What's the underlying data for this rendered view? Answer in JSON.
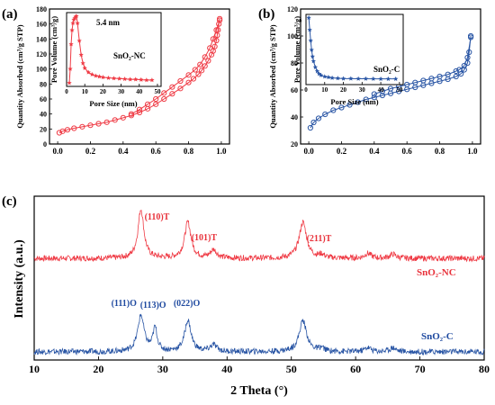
{
  "colors": {
    "red": "#ef3b45",
    "blue": "#2a56a5",
    "axis": "#000000"
  },
  "chart_data": [
    {
      "panel_label": "(a)",
      "type": "line",
      "markers": "circle",
      "color": "#ef3b45",
      "ylabel": "Quantity Absorbed (cm³/g STP)",
      "xlim": [
        -0.05,
        1.05
      ],
      "ylim": [
        0,
        180
      ],
      "xticks": [
        "0.0",
        "0.2",
        "0.4",
        "0.6",
        "0.8",
        "1.0"
      ],
      "yticks": [
        "0",
        "20",
        "40",
        "60",
        "80",
        "100",
        "120",
        "140",
        "160",
        "180"
      ],
      "adsorption": {
        "x": [
          0.01,
          0.03,
          0.06,
          0.1,
          0.15,
          0.2,
          0.25,
          0.3,
          0.35,
          0.4,
          0.45,
          0.5,
          0.55,
          0.6,
          0.65,
          0.7,
          0.75,
          0.8,
          0.83,
          0.86,
          0.88,
          0.9,
          0.92,
          0.94,
          0.95,
          0.96,
          0.97,
          0.975,
          0.98,
          0.985,
          0.99
        ],
        "y": [
          15,
          17,
          19,
          21,
          23,
          25,
          27,
          29,
          32,
          35,
          38,
          42,
          47,
          53,
          60,
          67,
          74,
          82,
          87,
          93,
          98,
          104,
          111,
          119,
          124,
          130,
          138,
          145,
          152,
          160,
          167
        ]
      },
      "desorption": {
        "x": [
          0.99,
          0.97,
          0.95,
          0.93,
          0.9,
          0.87,
          0.84,
          0.8,
          0.75,
          0.7,
          0.65,
          0.6,
          0.55,
          0.5,
          0.45
        ],
        "y": [
          165,
          152,
          140,
          128,
          116,
          106,
          99,
          92,
          84,
          76,
          68,
          60,
          53,
          46,
          40
        ]
      },
      "inset": {
        "label": "SnO₂-NC",
        "annotation": "5.4 nm",
        "xlabel": "Pore Size (nm)",
        "ylabel": "Pore Volume (cm³/g)",
        "xlim": [
          0,
          52
        ],
        "ylim": [
          0,
          1
        ],
        "xticks": [
          "0",
          "10",
          "20",
          "30",
          "40",
          "50"
        ],
        "x": [
          1.5,
          2,
          2.5,
          3,
          3.5,
          4,
          4.5,
          5,
          5.4,
          6,
          7,
          8,
          9,
          10,
          12,
          14,
          16,
          18,
          20,
          23,
          26,
          29,
          32,
          35,
          38,
          41,
          44,
          47
        ],
        "y": [
          0.05,
          0.25,
          0.6,
          0.8,
          0.9,
          0.95,
          0.97,
          0.99,
          1.0,
          0.9,
          0.65,
          0.45,
          0.33,
          0.26,
          0.2,
          0.17,
          0.15,
          0.14,
          0.13,
          0.12,
          0.115,
          0.11,
          0.105,
          0.1,
          0.1,
          0.095,
          0.09,
          0.09
        ]
      }
    },
    {
      "panel_label": "(b)",
      "type": "line",
      "markers": "circle",
      "color": "#2a56a5",
      "ylabel": "Quantity Absorbed (cm³/g STP)",
      "xlim": [
        -0.05,
        1.05
      ],
      "ylim": [
        20,
        120
      ],
      "xticks": [
        "0.0",
        "0.2",
        "0.4",
        "0.6",
        "0.8",
        "1.0"
      ],
      "yticks": [
        "20",
        "40",
        "60",
        "80",
        "100",
        "120"
      ],
      "adsorption": {
        "x": [
          0.01,
          0.03,
          0.06,
          0.1,
          0.15,
          0.2,
          0.25,
          0.3,
          0.35,
          0.4,
          0.45,
          0.5,
          0.55,
          0.6,
          0.65,
          0.7,
          0.75,
          0.8,
          0.85,
          0.9,
          0.93,
          0.95,
          0.97,
          0.98,
          0.99
        ],
        "y": [
          32,
          36,
          39,
          42,
          45,
          47,
          49,
          51,
          53,
          54.5,
          56,
          57.5,
          59,
          60.5,
          62,
          63.5,
          65,
          66.5,
          68,
          70,
          72,
          75,
          80,
          88,
          100
        ]
      },
      "desorption": {
        "x": [
          0.99,
          0.97,
          0.95,
          0.92,
          0.9,
          0.85,
          0.8,
          0.75,
          0.7,
          0.65,
          0.6,
          0.55,
          0.5,
          0.45,
          0.4
        ],
        "y": [
          99,
          84,
          78,
          75,
          74,
          71.5,
          70,
          68.5,
          67,
          65.5,
          64,
          62.5,
          61,
          59,
          57
        ]
      },
      "inset": {
        "label": "SnO₂-C",
        "xlabel": "Pore Size (nm)",
        "ylabel": "Pore Volume (cm³/g)",
        "xlim": [
          0,
          52
        ],
        "ylim": [
          0,
          1
        ],
        "xticks": [
          "0",
          "10",
          "20",
          "30",
          "40",
          "50"
        ],
        "x": [
          1.5,
          2,
          2.5,
          3,
          3.5,
          4,
          5,
          6,
          7,
          8,
          10,
          12,
          14,
          17,
          20,
          24,
          28,
          32,
          36,
          40,
          44,
          48
        ],
        "y": [
          1.0,
          0.82,
          0.66,
          0.52,
          0.42,
          0.35,
          0.26,
          0.2,
          0.16,
          0.14,
          0.12,
          0.11,
          0.1,
          0.095,
          0.09,
          0.09,
          0.088,
          0.087,
          0.086,
          0.085,
          0.085,
          0.085
        ]
      }
    },
    {
      "panel_label": "(c)",
      "type": "line",
      "xlabel": "2 Theta (°)",
      "ylabel": "Intensity (a.u.)",
      "xlim": [
        10,
        80
      ],
      "xticks": [
        "10",
        "20",
        "30",
        "40",
        "50",
        "60",
        "70",
        "80"
      ],
      "series": [
        {
          "name": "SnO₂-NC",
          "color": "#ef3b45",
          "baseline": 0.62,
          "peaks": [
            [
              26.6,
              0.3,
              0.55
            ],
            [
              33.9,
              0.22,
              0.6
            ],
            [
              37.9,
              0.05,
              0.6
            ],
            [
              51.8,
              0.22,
              0.7
            ],
            [
              54.7,
              0.02,
              0.5
            ],
            [
              61.9,
              0.03,
              0.6
            ],
            [
              65.8,
              0.025,
              0.6
            ]
          ],
          "annotations": [
            {
              "text": "(110)T",
              "x": 26.6
            },
            {
              "text": "(101)T",
              "x": 33.9
            },
            {
              "text": "(211)T",
              "x": 51.8
            }
          ]
        },
        {
          "name": "SnO₂-C",
          "color": "#2a56a5",
          "baseline": 0.05,
          "peaks": [
            [
              26.6,
              0.22,
              0.6
            ],
            [
              28.8,
              0.14,
              0.4
            ],
            [
              33.9,
              0.19,
              0.6
            ],
            [
              37.9,
              0.04,
              0.6
            ],
            [
              51.8,
              0.19,
              0.7
            ],
            [
              54.7,
              0.02,
              0.5
            ],
            [
              61.9,
              0.025,
              0.6
            ],
            [
              65.8,
              0.025,
              0.6
            ]
          ],
          "annotations": [
            {
              "text": "(111)O",
              "x": 24.5
            },
            {
              "text": "(113)O",
              "x": 29.0
            },
            {
              "text": "(022)O",
              "x": 34.2
            }
          ]
        }
      ]
    }
  ]
}
